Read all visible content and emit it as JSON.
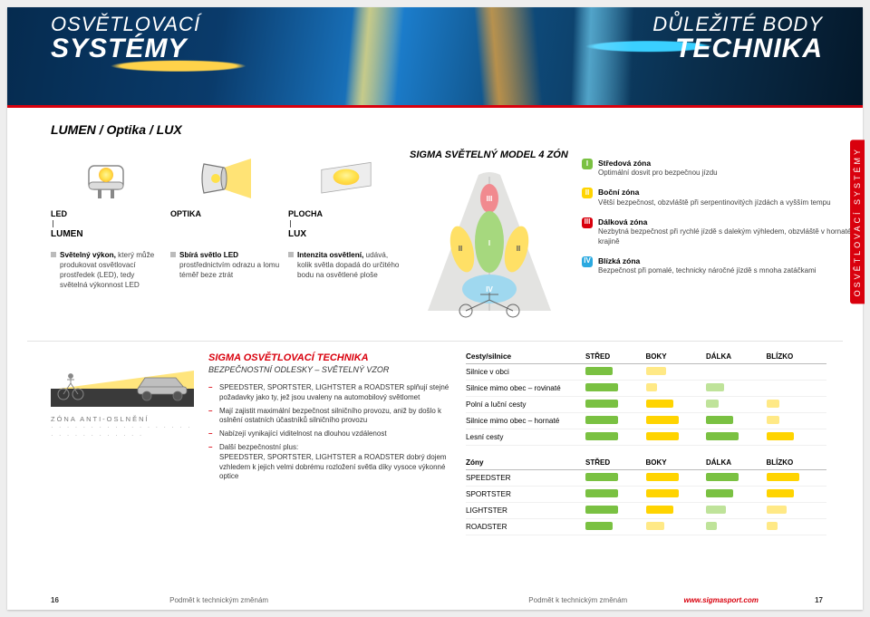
{
  "colors": {
    "red": "#d9000d",
    "green": "#7ac142",
    "yellow": "#ffd400",
    "bluePill": "#2aa9e0",
    "grayPill": "#a9a9a9",
    "midGreen": "#7ac142",
    "lightGreen": "#bfe39a",
    "midYellow": "#ffd400",
    "lightYellow": "#ffe986",
    "ledYellow": "#ffe14a",
    "ledOrange": "#ffb02e",
    "cone": "#ffe066",
    "roadGray": "#e3e3e1",
    "tick": "#555"
  },
  "hero": {
    "leftThin": "OSVĚTLOVACÍ",
    "leftThick": "SYSTÉMY",
    "rightThin": "DŮLEŽITÉ BODY",
    "rightThick": "TECHNIKA"
  },
  "subhead": "LUMEN / Optika / LUX",
  "led": {
    "label": "LED",
    "sub": "LUMEN",
    "bullet_strong": "Světelný výkon,",
    "bullet_rest": "který může produkovat osvětlovací prostředek (LED), tedy světelná výkonnost LED"
  },
  "opt": {
    "label": "OPTIKA",
    "bullet_strong": "Sbírá světlo LED",
    "bullet_rest": "prostřednictvím odrazu a lomu téměř beze ztrát"
  },
  "area": {
    "label": "PLOCHA",
    "sub": "LUX",
    "bullet_strong": "Intenzita osvětlení,",
    "bullet_rest": "udává, kolik světla dopadá do určitého bodu na osvětlené ploše"
  },
  "model_head": "SIGMA SVĚTELNÝ MODEL 4 ZÓN",
  "side_tab": "OSVĚTLOVACÍ SYSTÉMY",
  "zones": [
    {
      "num": "I",
      "pill": "#7ac142",
      "name": "Středová zóna",
      "desc": "Optimální dosvit pro bezpečnou jízdu"
    },
    {
      "num": "II",
      "pill": "#ffd400",
      "name": "Boční zóna",
      "desc": "Větší bezpečnost, obzvláště při serpentinovitých jízdách a vyšším tempu"
    },
    {
      "num": "III",
      "pill": "#d9000d",
      "name": "Dálková zóna",
      "desc": "Nezbytná bezpečnost při rychlé jízdě s dalekým výhledem, obzvláště v hornaté krajině"
    },
    {
      "num": "IV",
      "pill": "#2aa9e0",
      "name": "Blízká zóna",
      "desc": "Bezpečnost při pomalé, technicky náročné jízdě s mnoha zatáčkami"
    }
  ],
  "throw": {
    "anti": "ZÓNA ANTI-OSLNĚNÍ",
    "dots": "· · · · · · · · · · · · · · · · · · · · · · · · · · · · · ·"
  },
  "lm": {
    "title": "SIGMA OSVĚTLOVACÍ TECHNIKA",
    "sub": "BEZPEČNOSTNÍ ODLESKY – SVĚTELNÝ VZOR",
    "items": [
      "SPEEDSTER, SPORTSTER, LIGHTSTER a ROADSTER splňují stejné požadavky jako ty, jež jsou uvaleny na automobilový světlomet",
      "Mají zajistit maximální bezpečnost silničního provozu, aniž by došlo k oslnění ostatních účastníků silničního provozu",
      "Nabízejí vynikající viditelnost na dlouhou vzdálenost",
      "Další bezpečnostní plus:\nSPEEDSTER, SPORTSTER, LIGHTSTER a ROADSTER dobrý dojem vzhledem k jejich velmi dobrému rozložení světla díky vysoce výkonné optice"
    ]
  },
  "table1": {
    "head": [
      "Cesty/silnice",
      "STŘED",
      "BOKY",
      "DÁLKA",
      "BLÍZKO"
    ],
    "rows": [
      {
        "name": "Silnice v obci",
        "vals": [
          [
            "#7ac142",
            30
          ],
          [
            "#ffe986",
            22
          ],
          [
            "",
            0
          ],
          [
            "",
            0
          ]
        ]
      },
      {
        "name": "Silnice mimo obec – rovinaté",
        "vals": [
          [
            "#7ac142",
            36
          ],
          [
            "#ffe986",
            12
          ],
          [
            "#bfe39a",
            20
          ],
          [
            "",
            0
          ]
        ]
      },
      {
        "name": "Polní a luční cesty",
        "vals": [
          [
            "#7ac142",
            36
          ],
          [
            "#ffd400",
            30
          ],
          [
            "#bfe39a",
            14
          ],
          [
            "#ffe986",
            14
          ]
        ]
      },
      {
        "name": "Silnice mimo obec – hornaté",
        "vals": [
          [
            "#7ac142",
            36
          ],
          [
            "#ffd400",
            36
          ],
          [
            "#7ac142",
            30
          ],
          [
            "#ffe986",
            14
          ]
        ]
      },
      {
        "name": "Lesní cesty",
        "vals": [
          [
            "#7ac142",
            36
          ],
          [
            "#ffd400",
            36
          ],
          [
            "#7ac142",
            36
          ],
          [
            "#ffd400",
            30
          ]
        ]
      }
    ]
  },
  "table2": {
    "head": [
      "Zóny",
      "STŘED",
      "BOKY",
      "DÁLKA",
      "BLÍZKO"
    ],
    "rows": [
      {
        "name": "SPEEDSTER",
        "vals": [
          [
            "#7ac142",
            36
          ],
          [
            "#ffd400",
            36
          ],
          [
            "#7ac142",
            36
          ],
          [
            "#ffd400",
            36
          ]
        ]
      },
      {
        "name": "SPORTSTER",
        "vals": [
          [
            "#7ac142",
            36
          ],
          [
            "#ffd400",
            36
          ],
          [
            "#7ac142",
            30
          ],
          [
            "#ffd400",
            30
          ]
        ]
      },
      {
        "name": "LIGHTSTER",
        "vals": [
          [
            "#7ac142",
            36
          ],
          [
            "#ffd400",
            30
          ],
          [
            "#bfe39a",
            22
          ],
          [
            "#ffe986",
            22
          ]
        ]
      },
      {
        "name": "ROADSTER",
        "vals": [
          [
            "#7ac142",
            30
          ],
          [
            "#ffe986",
            20
          ],
          [
            "#bfe39a",
            12
          ],
          [
            "#ffe986",
            12
          ]
        ]
      }
    ]
  },
  "footer": {
    "leftPage": "16",
    "disclaimer": "Podmět k technickým změnám",
    "url": "www.sigmasport.com",
    "rightPage": "17"
  }
}
